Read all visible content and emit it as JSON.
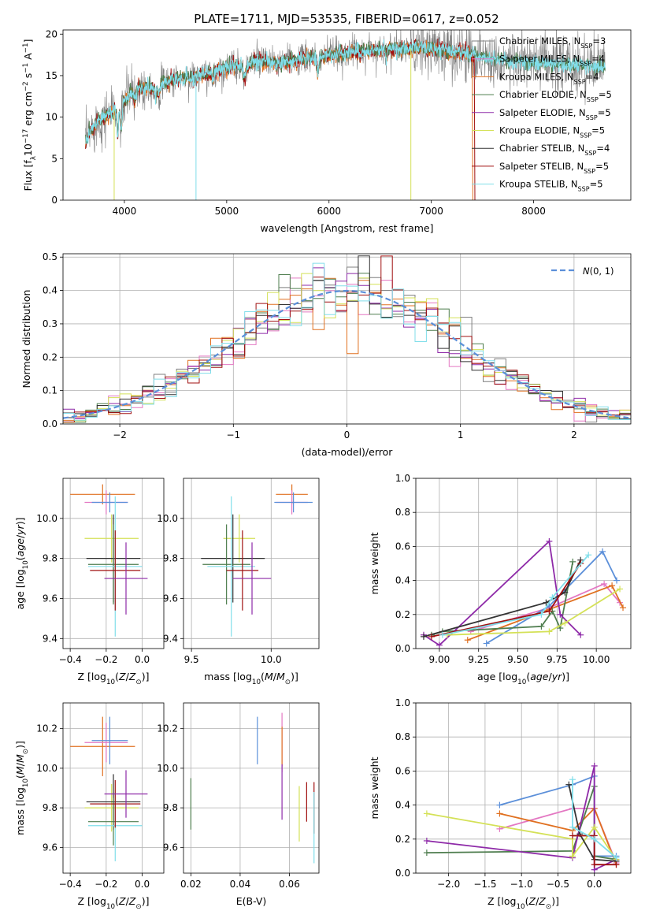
{
  "figure_title": "PLATE=1711, MJD=53535, FIBERID=0617, z=0.052",
  "colors": {
    "chabrier_miles": "#7f7f7f",
    "salpeter_miles": "#e377c2",
    "kroupa_miles": "#e07020",
    "chabrier_elodie": "#4e7d4e",
    "salpeter_elodie": "#8e2aa8",
    "kroupa_elodie": "#d4e157",
    "chabrier_stelib": "#333333",
    "salpeter_stelib": "#a01010",
    "kroupa_stelib": "#80deea",
    "gaussian": "#5b8fd9",
    "blue": "#5b8fd9"
  },
  "chart_data": [
    {
      "id": "spectrum",
      "type": "line",
      "title": "PLATE=1711, MJD=53535, FIBERID=0617, z=0.052",
      "xlabel": "wavelength [Angstrom, rest frame]",
      "ylabel": "Flux [f_λ 10^-17 erg cm^-2 s^-1 A^-1]",
      "xlim": [
        3400,
        8950
      ],
      "ylim": [
        0,
        20.5
      ],
      "xticks": [
        4000,
        5000,
        6000,
        7000,
        8000
      ],
      "yticks": [
        0,
        5,
        10,
        15,
        20
      ],
      "grid": false,
      "legend_position": "upper-right",
      "continuum": [
        [
          3620,
          7.0
        ],
        [
          3700,
          9.0
        ],
        [
          3800,
          10.0
        ],
        [
          3900,
          10.8
        ],
        [
          4000,
          12.0
        ],
        [
          4100,
          13.5
        ],
        [
          4300,
          13.8
        ],
        [
          4500,
          14.6
        ],
        [
          4700,
          14.8
        ],
        [
          5000,
          16.0
        ],
        [
          5300,
          16.8
        ],
        [
          5500,
          16.5
        ],
        [
          6000,
          17.5
        ],
        [
          6500,
          18.2
        ],
        [
          7000,
          18.3
        ],
        [
          7300,
          17.8
        ],
        [
          7600,
          17.0
        ],
        [
          8000,
          16.5
        ],
        [
          8400,
          16.2
        ],
        [
          8700,
          16.0
        ]
      ],
      "legend_entries": [
        {
          "label": "Chabrier MILES, N",
          "sub": "SSP",
          "suffix": "=3",
          "color_key": "chabrier_miles"
        },
        {
          "label": "Salpeter MILES, N",
          "sub": "SSP",
          "suffix": "=4",
          "color_key": "salpeter_miles"
        },
        {
          "label": "Kroupa MILES, N",
          "sub": "SSP",
          "suffix": "=4",
          "color_key": "kroupa_miles"
        },
        {
          "label": "Chabrier ELODIE, N",
          "sub": "SSP",
          "suffix": "=5",
          "color_key": "chabrier_elodie"
        },
        {
          "label": "Salpeter ELODIE, N",
          "sub": "SSP",
          "suffix": "=5",
          "color_key": "salpeter_elodie"
        },
        {
          "label": "Kroupa ELODIE, N",
          "sub": "SSP",
          "suffix": "=5",
          "color_key": "kroupa_elodie"
        },
        {
          "label": "Chabrier STELIB, N",
          "sub": "SSP",
          "suffix": "=4",
          "color_key": "chabrier_stelib"
        },
        {
          "label": "Salpeter STELIB, N",
          "sub": "SSP",
          "suffix": "=5",
          "color_key": "salpeter_stelib"
        },
        {
          "label": "Kroupa STELIB, N",
          "sub": "SSP",
          "suffix": "=5",
          "color_key": "kroupa_stelib"
        }
      ]
    },
    {
      "id": "residuals",
      "type": "line",
      "xlabel": "(data-model)/error",
      "ylabel": "Normed distribution",
      "xlim": [
        -2.5,
        2.5
      ],
      "ylim": [
        0,
        0.51
      ],
      "xticks": [
        -2,
        -1,
        0,
        1,
        2
      ],
      "yticks": [
        0.0,
        0.1,
        0.2,
        0.3,
        0.4,
        0.5
      ],
      "grid": true,
      "legend": [
        {
          "label": "N(0,1)",
          "style": "dashed",
          "color_key": "gaussian"
        }
      ],
      "legend_position": "upper-right",
      "gaussian": {
        "mean": 0,
        "sigma": 1
      }
    },
    {
      "id": "age_vs_Z",
      "type": "scatter",
      "xlabel": "Z [log10(Z/Z⊙)]",
      "ylabel": "age [log10(age/yr)]",
      "xlim": [
        -0.44,
        0.12
      ],
      "ylim": [
        9.35,
        10.2
      ],
      "xticks": [
        -0.4,
        -0.2,
        0.0
      ],
      "yticks": [
        9.4,
        9.6,
        9.8,
        10.0
      ],
      "grid": true,
      "points": [
        {
          "x": -0.22,
          "y": 10.12,
          "xerr": 0.18,
          "yerr": 0.05,
          "color_key": "kroupa_miles"
        },
        {
          "x": -0.2,
          "y": 10.08,
          "xerr": 0.12,
          "yerr": 0.06,
          "color_key": "salpeter_miles"
        },
        {
          "x": -0.18,
          "y": 10.08,
          "xerr": 0.1,
          "yerr": 0.05,
          "color_key": "blue"
        },
        {
          "x": -0.17,
          "y": 9.9,
          "xerr": 0.15,
          "yerr": 0.12,
          "color_key": "kroupa_elodie"
        },
        {
          "x": -0.16,
          "y": 9.8,
          "xerr": 0.15,
          "yerr": 0.22,
          "color_key": "chabrier_stelib"
        },
        {
          "x": -0.16,
          "y": 9.77,
          "xerr": 0.14,
          "yerr": 0.2,
          "color_key": "chabrier_elodie"
        },
        {
          "x": -0.15,
          "y": 9.76,
          "xerr": 0.15,
          "yerr": 0.35,
          "color_key": "kroupa_stelib"
        },
        {
          "x": -0.15,
          "y": 9.74,
          "xerr": 0.14,
          "yerr": 0.2,
          "color_key": "salpeter_stelib"
        },
        {
          "x": -0.09,
          "y": 9.7,
          "xerr": 0.12,
          "yerr": 0.18,
          "color_key": "salpeter_elodie"
        }
      ]
    },
    {
      "id": "age_vs_mass",
      "type": "scatter",
      "xlabel": "mass [log10(M/M⊙)]",
      "xlim": [
        9.45,
        10.3
      ],
      "ylim": [
        9.35,
        10.2
      ],
      "xticks": [
        9.5,
        10.0
      ],
      "yticks": [
        9.4,
        9.6,
        9.8,
        10.0
      ],
      "grid": true,
      "points": [
        {
          "x": 10.13,
          "y": 10.12,
          "xerr": 0.1,
          "yerr": 0.05,
          "color_key": "kroupa_miles"
        },
        {
          "x": 10.13,
          "y": 10.08,
          "xerr": 0.1,
          "yerr": 0.06,
          "color_key": "salpeter_miles"
        },
        {
          "x": 10.14,
          "y": 10.08,
          "xerr": 0.12,
          "yerr": 0.05,
          "color_key": "blue"
        },
        {
          "x": 9.8,
          "y": 9.9,
          "xerr": 0.1,
          "yerr": 0.12,
          "color_key": "kroupa_elodie"
        },
        {
          "x": 9.76,
          "y": 9.8,
          "xerr": 0.2,
          "yerr": 0.22,
          "color_key": "chabrier_stelib"
        },
        {
          "x": 9.72,
          "y": 9.77,
          "xerr": 0.15,
          "yerr": 0.2,
          "color_key": "chabrier_elodie"
        },
        {
          "x": 9.75,
          "y": 9.76,
          "xerr": 0.15,
          "yerr": 0.35,
          "color_key": "kroupa_stelib"
        },
        {
          "x": 9.82,
          "y": 9.74,
          "xerr": 0.1,
          "yerr": 0.2,
          "color_key": "salpeter_stelib"
        },
        {
          "x": 9.88,
          "y": 9.7,
          "xerr": 0.12,
          "yerr": 0.18,
          "color_key": "salpeter_elodie"
        }
      ]
    },
    {
      "id": "weight_vs_age",
      "type": "line",
      "xlabel": "age [log10(age/yr)]",
      "ylabel": "mass weight",
      "xlim": [
        8.85,
        10.22
      ],
      "ylim": [
        0,
        1.0
      ],
      "xticks": [
        9.0,
        9.25,
        9.5,
        9.75,
        10.0
      ],
      "yticks": [
        0.0,
        0.2,
        0.4,
        0.6,
        0.8,
        1.0
      ],
      "grid": true,
      "series": [
        {
          "color_key": "salpeter_miles",
          "points": [
            [
              9.2,
              0.1
            ],
            [
              9.7,
              0.24
            ],
            [
              10.05,
              0.38
            ],
            [
              10.15,
              0.27
            ]
          ]
        },
        {
          "color_key": "kroupa_miles",
          "points": [
            [
              9.18,
              0.05
            ],
            [
              9.7,
              0.23
            ],
            [
              10.1,
              0.37
            ],
            [
              10.17,
              0.24
            ]
          ]
        },
        {
          "color_key": "blue",
          "points": [
            [
              9.3,
              0.03
            ],
            [
              9.7,
              0.25
            ],
            [
              10.04,
              0.57
            ],
            [
              10.13,
              0.4
            ]
          ]
        },
        {
          "color_key": "chabrier_elodie",
          "points": [
            [
              8.95,
              0.08
            ],
            [
              9.02,
              0.1
            ],
            [
              9.65,
              0.13
            ],
            [
              9.72,
              0.22
            ],
            [
              9.77,
              0.12
            ],
            [
              9.85,
              0.51
            ]
          ]
        },
        {
          "color_key": "salpeter_elodie",
          "points": [
            [
              8.9,
              0.08
            ],
            [
              9.0,
              0.02
            ],
            [
              9.7,
              0.63
            ],
            [
              9.77,
              0.2
            ],
            [
              9.9,
              0.08
            ]
          ]
        },
        {
          "color_key": "kroupa_elodie",
          "points": [
            [
              9.05,
              0.08
            ],
            [
              9.7,
              0.1
            ],
            [
              9.8,
              0.15
            ],
            [
              10.15,
              0.35
            ]
          ]
        },
        {
          "color_key": "chabrier_stelib",
          "points": [
            [
              8.9,
              0.07
            ],
            [
              9.68,
              0.27
            ],
            [
              9.8,
              0.33
            ],
            [
              9.9,
              0.52
            ]
          ]
        },
        {
          "color_key": "salpeter_stelib",
          "points": [
            [
              8.95,
              0.07
            ],
            [
              9.7,
              0.22
            ],
            [
              9.9,
              0.5
            ]
          ]
        },
        {
          "color_key": "kroupa_stelib",
          "points": [
            [
              9.02,
              0.08
            ],
            [
              9.65,
              0.2
            ],
            [
              9.72,
              0.3
            ],
            [
              9.95,
              0.55
            ]
          ]
        }
      ]
    },
    {
      "id": "mass_vs_Z",
      "type": "scatter",
      "xlabel": "Z [log10(Z/Z⊙)]",
      "ylabel": "mass [log10(M/M⊙)]",
      "xlim": [
        -0.44,
        0.12
      ],
      "ylim": [
        9.47,
        10.33
      ],
      "xticks": [
        -0.4,
        -0.2,
        0.0
      ],
      "yticks": [
        9.6,
        9.8,
        10.0,
        10.2
      ],
      "grid": true,
      "points": [
        {
          "x": -0.22,
          "y": 10.11,
          "xerr": 0.18,
          "yerr": 0.15,
          "color_key": "kroupa_miles"
        },
        {
          "x": -0.2,
          "y": 10.13,
          "xerr": 0.12,
          "yerr": 0.1,
          "color_key": "salpeter_miles"
        },
        {
          "x": -0.18,
          "y": 10.14,
          "xerr": 0.1,
          "yerr": 0.12,
          "color_key": "blue"
        },
        {
          "x": -0.17,
          "y": 9.8,
          "xerr": 0.15,
          "yerr": 0.12,
          "color_key": "kroupa_elodie"
        },
        {
          "x": -0.16,
          "y": 9.83,
          "xerr": 0.15,
          "yerr": 0.14,
          "color_key": "chabrier_stelib"
        },
        {
          "x": -0.16,
          "y": 9.73,
          "xerr": 0.14,
          "yerr": 0.12,
          "color_key": "chabrier_elodie"
        },
        {
          "x": -0.15,
          "y": 9.71,
          "xerr": 0.15,
          "yerr": 0.18,
          "color_key": "kroupa_stelib"
        },
        {
          "x": -0.15,
          "y": 9.82,
          "xerr": 0.14,
          "yerr": 0.12,
          "color_key": "salpeter_stelib"
        },
        {
          "x": -0.09,
          "y": 9.87,
          "xerr": 0.12,
          "yerr": 0.12,
          "color_key": "salpeter_elodie"
        }
      ]
    },
    {
      "id": "mass_vs_ebv",
      "type": "scatter",
      "xlabel": "E(B-V)",
      "xlim": [
        0.017,
        0.072
      ],
      "ylim": [
        9.47,
        10.33
      ],
      "xticks": [
        0.02,
        0.04,
        0.06
      ],
      "yticks": [
        9.6,
        9.8,
        10.0,
        10.2
      ],
      "grid": true,
      "points": [
        {
          "x": 0.02,
          "y": 9.82,
          "yerr": 0.13,
          "color_key": "chabrier_elodie"
        },
        {
          "x": 0.047,
          "y": 10.14,
          "yerr": 0.12,
          "color_key": "blue"
        },
        {
          "x": 0.057,
          "y": 10.13,
          "yerr": 0.15,
          "color_key": "salpeter_miles"
        },
        {
          "x": 0.057,
          "y": 10.11,
          "yerr": 0.1,
          "color_key": "kroupa_miles"
        },
        {
          "x": 0.057,
          "y": 9.88,
          "yerr": 0.14,
          "color_key": "salpeter_elodie"
        },
        {
          "x": 0.064,
          "y": 9.77,
          "yerr": 0.14,
          "color_key": "kroupa_elodie"
        },
        {
          "x": 0.067,
          "y": 9.83,
          "yerr": 0.1,
          "color_key": "salpeter_stelib"
        },
        {
          "x": 0.07,
          "y": 9.8,
          "yerr": 0.13,
          "color_key": "salpeter_stelib"
        },
        {
          "x": 0.07,
          "y": 9.7,
          "yerr": 0.18,
          "color_key": "kroupa_stelib"
        }
      ]
    },
    {
      "id": "weight_vs_Z",
      "type": "line",
      "xlabel": "Z [log10(Z/Z⊙)]",
      "ylabel": "mass weight",
      "xlim": [
        -2.45,
        0.5
      ],
      "ylim": [
        0,
        1.0
      ],
      "xticks": [
        -2.0,
        -1.5,
        -1.0,
        -0.5,
        0.0
      ],
      "yticks": [
        0.0,
        0.2,
        0.4,
        0.6,
        0.8,
        1.0
      ],
      "grid": true,
      "series": [
        {
          "color_key": "salpeter_miles",
          "points": [
            [
              -1.3,
              0.26
            ],
            [
              -0.3,
              0.38
            ],
            [
              0.0,
              0.38
            ],
            [
              0.3,
              0.06
            ]
          ]
        },
        {
          "color_key": "kroupa_miles",
          "points": [
            [
              -1.3,
              0.35
            ],
            [
              -0.3,
              0.25
            ],
            [
              0.0,
              0.38
            ],
            [
              0.3,
              0.05
            ]
          ]
        },
        {
          "color_key": "blue",
          "points": [
            [
              -1.3,
              0.4
            ],
            [
              -0.3,
              0.52
            ],
            [
              0.0,
              0.57
            ],
            [
              0.0,
              0.1
            ],
            [
              0.3,
              0.1
            ]
          ]
        },
        {
          "color_key": "chabrier_elodie",
          "points": [
            [
              -2.3,
              0.12
            ],
            [
              -0.3,
              0.13
            ],
            [
              0.0,
              0.51
            ],
            [
              0.0,
              0.1
            ],
            [
              0.3,
              0.08
            ]
          ]
        },
        {
          "color_key": "salpeter_elodie",
          "points": [
            [
              -2.3,
              0.19
            ],
            [
              -0.3,
              0.09
            ],
            [
              0.0,
              0.63
            ],
            [
              0.0,
              0.02
            ],
            [
              0.3,
              0.08
            ]
          ]
        },
        {
          "color_key": "kroupa_elodie",
          "points": [
            [
              -2.3,
              0.35
            ],
            [
              -0.3,
              0.2
            ],
            [
              -0.3,
              0.1
            ],
            [
              0.0,
              0.27
            ],
            [
              0.3,
              0.08
            ]
          ]
        },
        {
          "color_key": "chabrier_stelib",
          "points": [
            [
              -0.35,
              0.52
            ],
            [
              -0.2,
              0.23
            ],
            [
              0.0,
              0.08
            ],
            [
              0.3,
              0.07
            ]
          ]
        },
        {
          "color_key": "salpeter_stelib",
          "points": [
            [
              -0.3,
              0.22
            ],
            [
              0.0,
              0.22
            ],
            [
              0.0,
              0.05
            ],
            [
              0.3,
              0.05
            ]
          ]
        },
        {
          "color_key": "kroupa_stelib",
          "points": [
            [
              -0.3,
              0.55
            ],
            [
              -0.3,
              0.27
            ],
            [
              0.0,
              0.2
            ],
            [
              0.3,
              0.09
            ]
          ]
        }
      ]
    }
  ]
}
